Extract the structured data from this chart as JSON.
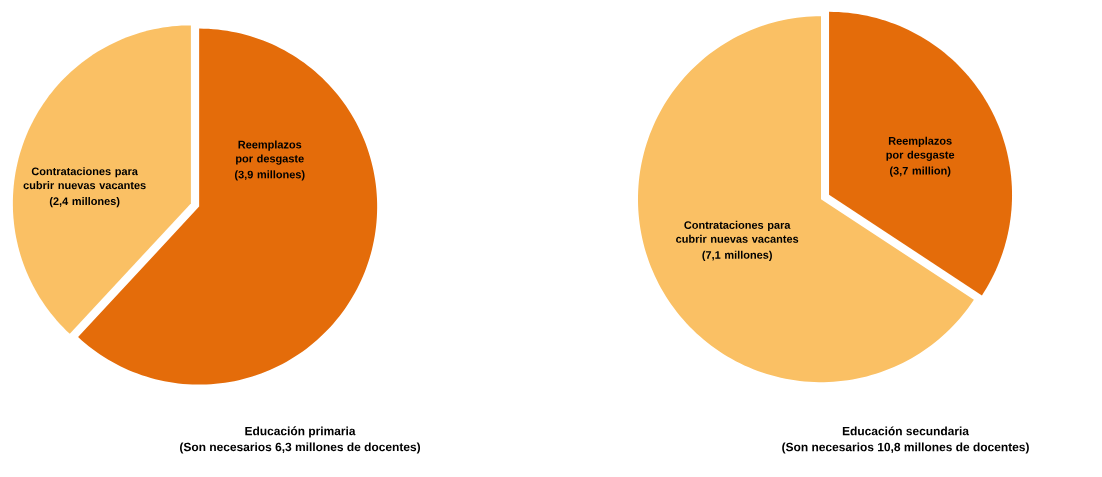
{
  "chart_data": [
    {
      "type": "pie",
      "title": "Educación primaria",
      "subtitle": "(Son necesarios 6,3 millones de docentes)",
      "categories": [
        "Reemplazos por desgaste",
        "Contrataciones para cubrir nuevas vacantes"
      ],
      "values": [
        3.9,
        2.4
      ],
      "value_labels": [
        "(3,9 millones)",
        "(2,4 millones)"
      ],
      "colors": [
        "#e46c0a",
        "#fac064"
      ]
    },
    {
      "type": "pie",
      "title": "Educación  secundaria",
      "subtitle": "(Son necesarios 10,8 millones de docentes)",
      "categories": [
        "Reemplazos por desgaste",
        "Contrataciones para cubrir nuevas vacantes"
      ],
      "values": [
        3.7,
        7.1
      ],
      "value_labels": [
        "(3,7 million)",
        "(7,1 millones)"
      ],
      "colors": [
        "#e46c0a",
        "#fac064"
      ]
    }
  ]
}
